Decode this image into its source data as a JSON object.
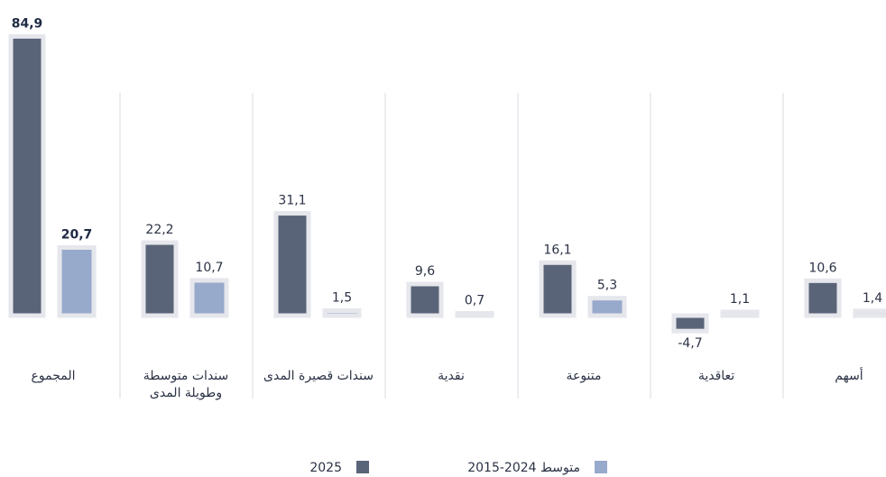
{
  "chart_data": {
    "type": "bar",
    "categories": [
      "المجموع",
      "سندات متوسطة وطويلة المدى",
      "سندات قصيرة المدى",
      "نقدية",
      "متنوعة",
      "تعاقدية",
      "أسهم"
    ],
    "series": [
      {
        "name": "2025",
        "color": "#5a6478",
        "values": [
          84.9,
          22.2,
          31.1,
          9.6,
          16.1,
          -4.7,
          10.6
        ],
        "value_labels": [
          "84,9",
          "22,2",
          "31,1",
          "9,6",
          "16,1",
          "-4,7",
          "10,6"
        ]
      },
      {
        "name": "متوسط 2024-2015",
        "color": "#98aacb",
        "values": [
          20.7,
          10.7,
          1.5,
          0.7,
          5.3,
          1.1,
          1.4
        ],
        "value_labels": [
          "20,7",
          "10,7",
          "1,5",
          "0,7",
          "5,3",
          "1,1",
          "1,4"
        ]
      }
    ],
    "ylim": [
      -20,
      85
    ]
  }
}
